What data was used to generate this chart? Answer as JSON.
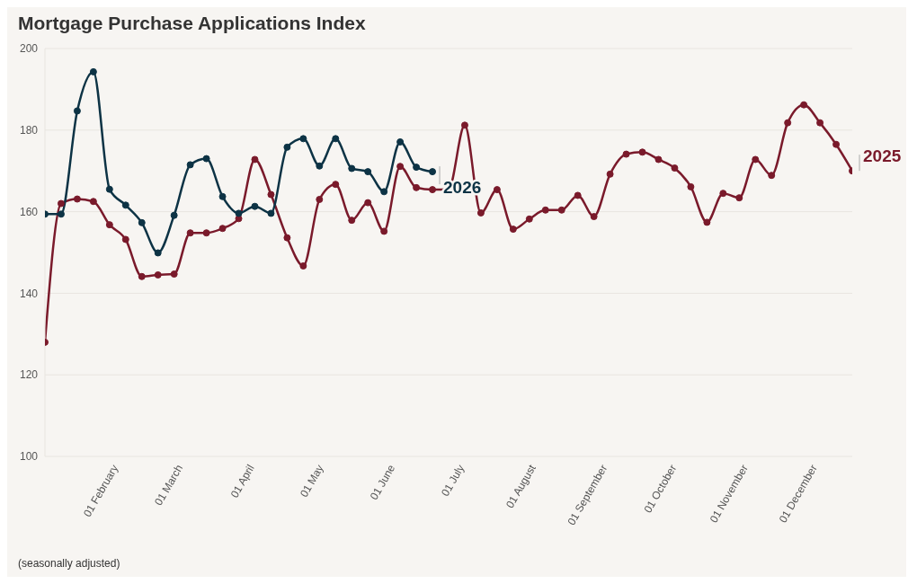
{
  "chart_data": {
    "type": "line",
    "title": "Mortgage Purchase Applications Index",
    "annotations": [
      "(seasonally adjusted)"
    ],
    "x": [
      "--01-03",
      "--01-10",
      "--01-17",
      "--01-24",
      "--01-31",
      "--02-07",
      "--02-14",
      "--02-21",
      "--02-28",
      "--03-07",
      "--03-14",
      "--03-21",
      "--03-28",
      "--04-04",
      "--04-11",
      "--04-18",
      "--04-25",
      "--05-02",
      "--05-09",
      "--05-16",
      "--05-23",
      "--05-30",
      "--06-06",
      "--06-13",
      "--06-20",
      "--06-27",
      "--07-04",
      "--07-11",
      "--07-18",
      "--07-25",
      "--08-01",
      "--08-08",
      "--08-15",
      "--08-22",
      "--08-29",
      "--09-05",
      "--09-12",
      "--09-19",
      "--09-26",
      "--10-03",
      "--10-10",
      "--10-17",
      "--10-24",
      "--10-31",
      "--11-07",
      "--11-14",
      "--11-21",
      "--11-28",
      "--12-05",
      "--12-12",
      "--12-19"
    ],
    "series": [
      {
        "name": "2025",
        "color": "#7a1a2b",
        "values": [
          128,
          162.0,
          163.1,
          162.5,
          156.8,
          153.2,
          144.1,
          144.5,
          144.7,
          154.8,
          154.8,
          155.9,
          158.3,
          172.8,
          164.2,
          153.6,
          146.7,
          163.0,
          166.7,
          157.9,
          162.2,
          155.2,
          171.1,
          165.9,
          165.4,
          165.5,
          181.2,
          159.7,
          165.4,
          155.7,
          158.2,
          160.4,
          160.4,
          164.0,
          158.8,
          169.2,
          174.1,
          174.6,
          172.8,
          170.7,
          166.1,
          157.4,
          164.5,
          163.4,
          172.8,
          168.9,
          181.8,
          186.2,
          181.8,
          176.5,
          170.0
        ]
      },
      {
        "name": "2026",
        "color": "#0d3345",
        "x": [
          "--01-03",
          "--01-10",
          "--01-17",
          "--01-24",
          "--01-31",
          "--02-07",
          "--02-14",
          "--02-21",
          "--02-28",
          "--03-07",
          "--03-14",
          "--03-21",
          "--03-28",
          "--04-04",
          "--04-11",
          "--04-18",
          "--04-25",
          "--05-02",
          "--05-09",
          "--05-16",
          "--05-23",
          "--05-30",
          "--06-06",
          "--06-13",
          "--06-20"
        ],
        "values": [
          159.4,
          159.4,
          184.7,
          194.3,
          165.5,
          161.6,
          157.3,
          149.9,
          159.1,
          171.5,
          173.0,
          163.7,
          159.6,
          161.3,
          159.6,
          175.8,
          177.9,
          171.2,
          177.9,
          170.6,
          169.8,
          164.9,
          177.1,
          170.9,
          169.8
        ]
      }
    ],
    "xlim": [
      "--01-03",
      "--12-19"
    ],
    "xticks": [
      {
        "value": "--02-01",
        "label": "01 February"
      },
      {
        "value": "--03-01",
        "label": "01 March"
      },
      {
        "value": "--04-01",
        "label": "01 April"
      },
      {
        "value": "--05-01",
        "label": "01 May"
      },
      {
        "value": "--06-01",
        "label": "01 June"
      },
      {
        "value": "--07-01",
        "label": "01 July"
      },
      {
        "value": "--08-01",
        "label": "01 August"
      },
      {
        "value": "--09-01",
        "label": "01 September"
      },
      {
        "value": "--10-01",
        "label": "01 October"
      },
      {
        "value": "--11-01",
        "label": "01 November"
      },
      {
        "value": "--12-01",
        "label": "01 December"
      }
    ],
    "ylim": [
      100,
      200
    ],
    "yticks": [
      100,
      120,
      140,
      160,
      180,
      200
    ],
    "grid": "y",
    "legend": false,
    "marker": "circle",
    "line_style": "solid"
  }
}
